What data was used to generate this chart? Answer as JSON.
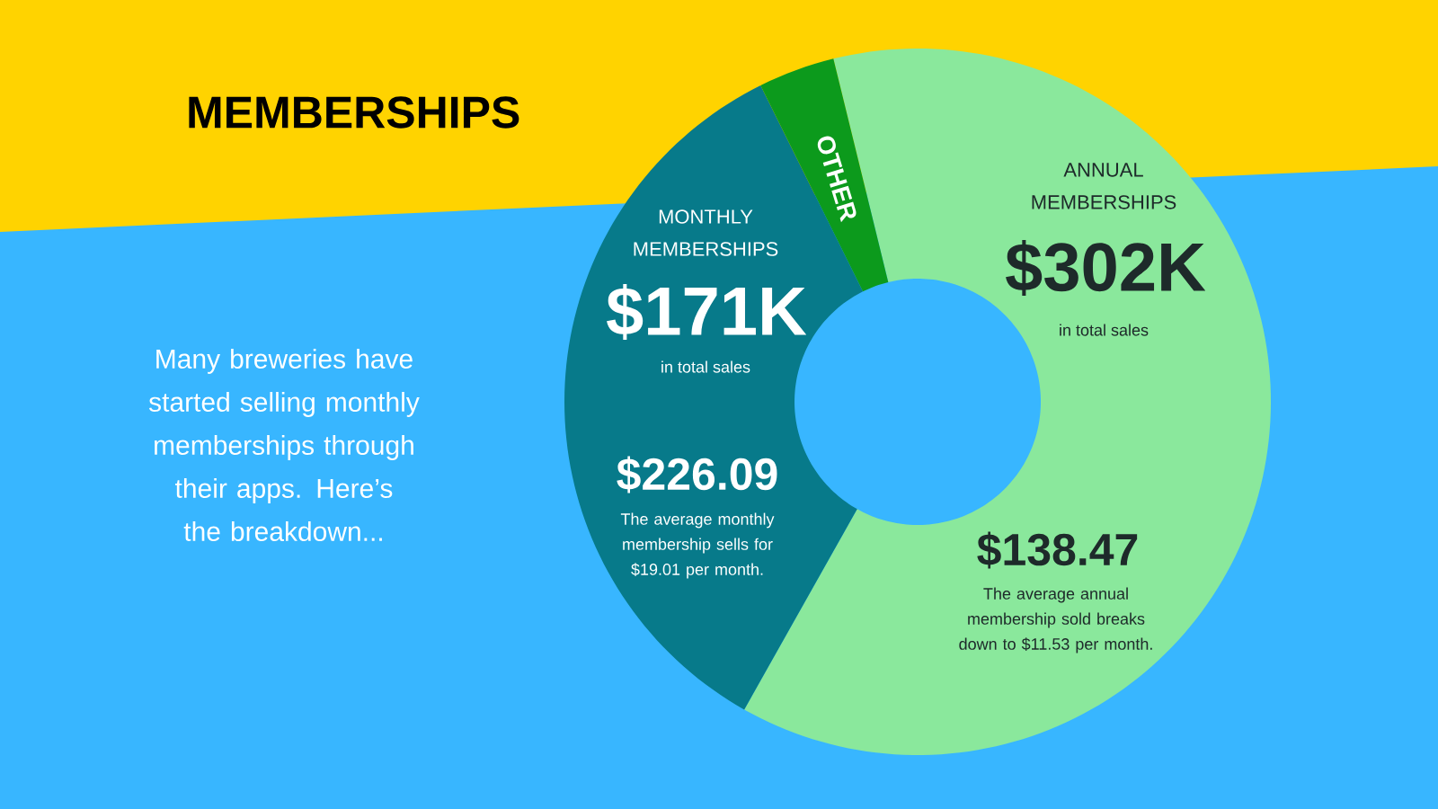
{
  "chart_data": {
    "type": "donut",
    "title": "MEMBERSHIPS",
    "categories": [
      "ANNUAL MEMBERSHIPS",
      "MONTHLY MEMBERSHIPS",
      "OTHER"
    ],
    "values": [
      62,
      34.5,
      3.5
    ],
    "colors": [
      "#8ae89c",
      "#077a8a",
      "#0c9a1c"
    ],
    "annotations": [
      "Many breweries have started selling monthly memberships through their apps. Here’s the breakdown...",
      "$302K",
      "in total sales",
      "$138.47",
      "The average annual membership sold breaks down to $11.53 per month.",
      "$171K",
      "in total sales",
      "$226.09",
      "The average monthly membership sells for $19.01 per month."
    ]
  }
}
